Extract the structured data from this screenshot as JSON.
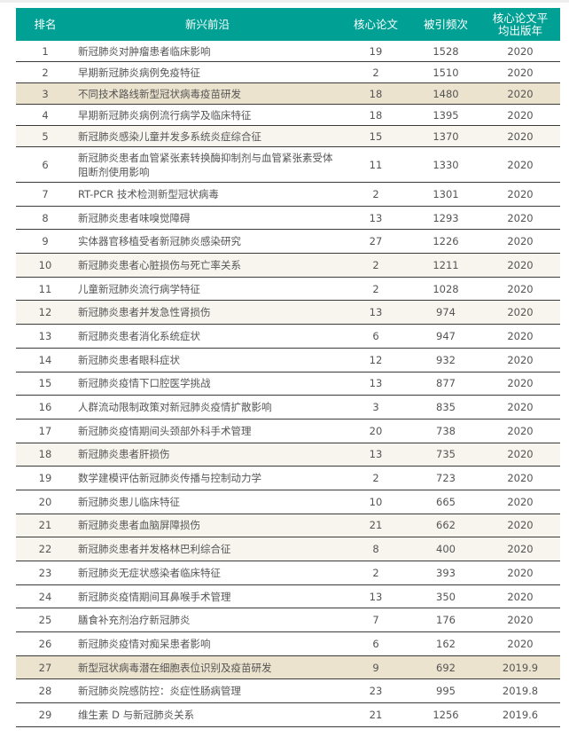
{
  "header": {
    "rank": "排名",
    "topic": "新兴前沿",
    "core_papers": "核心论文",
    "citations": "被引频次",
    "avg_year": "核心论文平均出版年"
  },
  "colors": {
    "header_bg": "#00a194",
    "highlight_strong": "#ece3cf",
    "highlight_light": "#f8f5ef"
  },
  "rows": [
    {
      "rank": "1",
      "topic": "新冠肺炎对肿瘤患者临床影响",
      "core": "19",
      "cites": "1528",
      "year": "2020",
      "shade": "none"
    },
    {
      "rank": "2",
      "topic": "早期新冠肺炎病例免疫特征",
      "core": "2",
      "cites": "1510",
      "year": "2020",
      "shade": "none"
    },
    {
      "rank": "3",
      "topic": "不同技术路线新型冠状病毒疫苗研发",
      "core": "18",
      "cites": "1480",
      "year": "2020",
      "shade": "strong"
    },
    {
      "rank": "4",
      "topic": "早期新冠肺炎病例流行病学及临床特征",
      "core": "18",
      "cites": "1395",
      "year": "2020",
      "shade": "none"
    },
    {
      "rank": "5",
      "topic": "新冠肺炎感染儿童并发多系统炎症综合征",
      "core": "15",
      "cites": "1370",
      "year": "2020",
      "shade": "light"
    },
    {
      "rank": "6",
      "topic": "新冠肺炎患者血管紧张素转换酶抑制剂与血管紧张素受体阻断剂使用影响",
      "core": "11",
      "cites": "1330",
      "year": "2020",
      "shade": "none"
    },
    {
      "rank": "7",
      "topic": "RT-PCR 技术检测新型冠状病毒",
      "core": "2",
      "cites": "1301",
      "year": "2020",
      "shade": "none"
    },
    {
      "rank": "8",
      "topic": "新冠肺炎患者味嗅觉障碍",
      "core": "13",
      "cites": "1293",
      "year": "2020",
      "shade": "none"
    },
    {
      "rank": "9",
      "topic": "实体器官移植受者新冠肺炎感染研究",
      "core": "27",
      "cites": "1226",
      "year": "2020",
      "shade": "none"
    },
    {
      "rank": "10",
      "topic": "新冠肺炎患者心脏损伤与死亡率关系",
      "core": "2",
      "cites": "1211",
      "year": "2020",
      "shade": "light"
    },
    {
      "rank": "11",
      "topic": "儿童新冠肺炎流行病学特征",
      "core": "2",
      "cites": "1028",
      "year": "2020",
      "shade": "none"
    },
    {
      "rank": "12",
      "topic": "新冠肺炎患者并发急性肾损伤",
      "core": "13",
      "cites": "974",
      "year": "2020",
      "shade": "light"
    },
    {
      "rank": "13",
      "topic": "新冠肺炎患者消化系统症状",
      "core": "6",
      "cites": "947",
      "year": "2020",
      "shade": "none"
    },
    {
      "rank": "14",
      "topic": "新冠肺炎患者眼科症状",
      "core": "12",
      "cites": "932",
      "year": "2020",
      "shade": "none"
    },
    {
      "rank": "15",
      "topic": "新冠肺炎疫情下口腔医学挑战",
      "core": "13",
      "cites": "877",
      "year": "2020",
      "shade": "none"
    },
    {
      "rank": "16",
      "topic": "人群流动限制政策对新冠肺炎疫情扩散影响",
      "core": "3",
      "cites": "835",
      "year": "2020",
      "shade": "none"
    },
    {
      "rank": "17",
      "topic": "新冠肺炎疫情期间头颈部外科手术管理",
      "core": "20",
      "cites": "738",
      "year": "2020",
      "shade": "none"
    },
    {
      "rank": "18",
      "topic": "新冠肺炎患者肝损伤",
      "core": "13",
      "cites": "735",
      "year": "2020",
      "shade": "light"
    },
    {
      "rank": "19",
      "topic": "数学建模评估新冠肺炎传播与控制动力学",
      "core": "2",
      "cites": "723",
      "year": "2020",
      "shade": "none"
    },
    {
      "rank": "20",
      "topic": "新冠肺炎患儿临床特征",
      "core": "10",
      "cites": "665",
      "year": "2020",
      "shade": "none"
    },
    {
      "rank": "21",
      "topic": "新冠肺炎患者血脑屏障损伤",
      "core": "21",
      "cites": "662",
      "year": "2020",
      "shade": "light"
    },
    {
      "rank": "22",
      "topic": "新冠肺炎患者并发格林巴利综合征",
      "core": "8",
      "cites": "400",
      "year": "2020",
      "shade": "light"
    },
    {
      "rank": "23",
      "topic": "新冠肺炎无症状感染者临床特征",
      "core": "2",
      "cites": "393",
      "year": "2020",
      "shade": "none"
    },
    {
      "rank": "24",
      "topic": "新冠肺炎疫情期间耳鼻喉手术管理",
      "core": "13",
      "cites": "350",
      "year": "2020",
      "shade": "none"
    },
    {
      "rank": "25",
      "topic": "膳食补充剂治疗新冠肺炎",
      "core": "7",
      "cites": "176",
      "year": "2020",
      "shade": "none"
    },
    {
      "rank": "26",
      "topic": "新冠肺炎疫情对痴呆患者影响",
      "core": "6",
      "cites": "162",
      "year": "2020",
      "shade": "none"
    },
    {
      "rank": "27",
      "topic": "新型冠状病毒潜在细胞表位识别及疫苗研发",
      "core": "9",
      "cites": "692",
      "year": "2019.9",
      "shade": "strong"
    },
    {
      "rank": "28",
      "topic": "新冠肺炎院感防控：炎症性肠病管理",
      "core": "23",
      "cites": "995",
      "year": "2019.8",
      "shade": "none"
    },
    {
      "rank": "29",
      "topic": "维生素 D 与新冠肺炎关系",
      "core": "21",
      "cites": "1256",
      "year": "2019.6",
      "shade": "none"
    }
  ]
}
